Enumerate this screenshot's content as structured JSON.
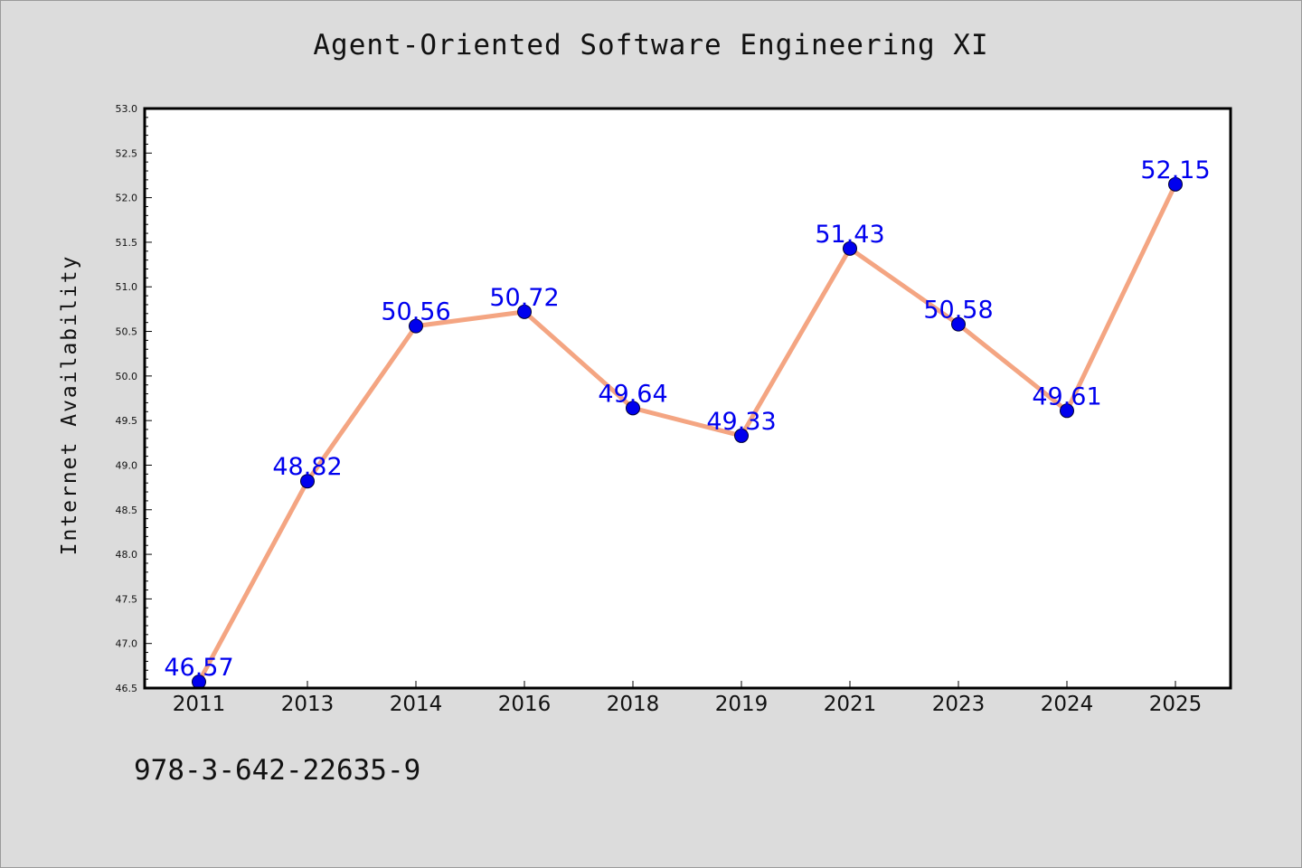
{
  "chart_data": {
    "type": "line",
    "title": "Agent-Oriented Software Engineering XI",
    "xlabel": "",
    "ylabel": "Internet Availability",
    "categories": [
      "2011",
      "2013",
      "2014",
      "2016",
      "2018",
      "2019",
      "2021",
      "2023",
      "2024",
      "2025"
    ],
    "series": [
      {
        "values": [
          46.57,
          48.82,
          50.56,
          50.72,
          49.64,
          49.33,
          51.43,
          50.58,
          49.61,
          52.15
        ],
        "labels": [
          "46.57",
          "48.82",
          "50.56",
          "50.72",
          "49.64",
          "49.33",
          "51.43",
          "50.58",
          "49.61",
          "52.15"
        ],
        "line_color": "#f4a582",
        "marker_color": "#0000ee"
      }
    ],
    "ylim": [
      46.5,
      53.0
    ],
    "yticks": [
      "46.5",
      "47.0",
      "47.5",
      "48.0",
      "48.5",
      "49.0",
      "49.5",
      "50.0",
      "50.5",
      "51.0",
      "51.5",
      "52.0",
      "52.5",
      "53.0"
    ],
    "grid": false,
    "label_color": "#0000ee"
  },
  "footer": "978-3-642-22635-9"
}
